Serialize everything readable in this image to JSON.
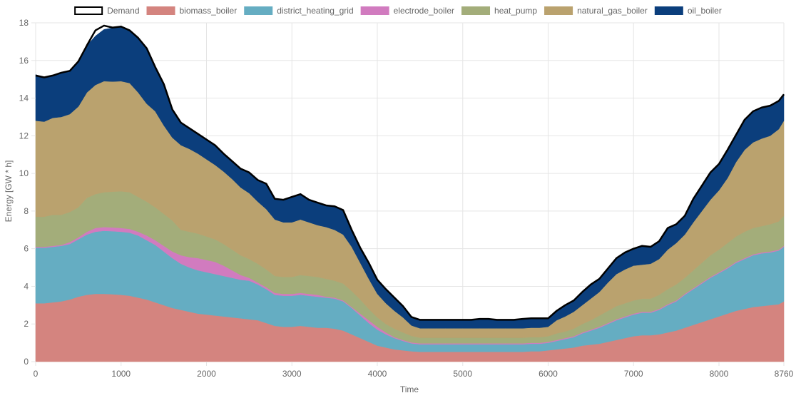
{
  "chart_data": {
    "type": "area",
    "stacked": true,
    "xlabel": "Time",
    "ylabel": "Energy [GW * h]",
    "xlim": [
      0,
      8760
    ],
    "ylim": [
      0,
      18
    ],
    "x_ticks": [
      "0",
      "1000",
      "2000",
      "3000",
      "4000",
      "5000",
      "6000",
      "7000",
      "8000",
      "8760"
    ],
    "y_ticks": [
      "0",
      "2",
      "4",
      "6",
      "8",
      "10",
      "12",
      "14",
      "16",
      "18"
    ],
    "grid": true,
    "legend_position": "top",
    "x": [
      0,
      100,
      200,
      300,
      400,
      500,
      600,
      700,
      800,
      900,
      1000,
      1100,
      1200,
      1300,
      1400,
      1500,
      1600,
      1700,
      1800,
      1900,
      2000,
      2100,
      2200,
      2300,
      2400,
      2500,
      2600,
      2700,
      2800,
      2900,
      3000,
      3100,
      3200,
      3300,
      3400,
      3500,
      3600,
      3700,
      3800,
      3900,
      4000,
      4100,
      4200,
      4300,
      4400,
      4500,
      4600,
      4700,
      4800,
      4900,
      5000,
      5100,
      5200,
      5300,
      5400,
      5500,
      5600,
      5700,
      5800,
      5900,
      6000,
      6100,
      6200,
      6300,
      6400,
      6500,
      6600,
      6700,
      6800,
      6900,
      7000,
      7100,
      7200,
      7300,
      7400,
      7500,
      7600,
      7700,
      7800,
      7900,
      8000,
      8100,
      8200,
      8300,
      8400,
      8500,
      8600,
      8700,
      8760
    ],
    "series": [
      {
        "name": "biomass_boiler",
        "color": "#d4847f",
        "values": [
          3.1,
          3.1,
          3.15,
          3.2,
          3.3,
          3.45,
          3.55,
          3.6,
          3.6,
          3.58,
          3.55,
          3.5,
          3.4,
          3.3,
          3.15,
          3.0,
          2.85,
          2.75,
          2.65,
          2.55,
          2.5,
          2.45,
          2.4,
          2.35,
          2.3,
          2.25,
          2.2,
          2.05,
          1.9,
          1.85,
          1.85,
          1.9,
          1.85,
          1.8,
          1.8,
          1.75,
          1.65,
          1.45,
          1.25,
          1.05,
          0.85,
          0.75,
          0.65,
          0.6,
          0.55,
          0.52,
          0.52,
          0.52,
          0.52,
          0.52,
          0.52,
          0.52,
          0.52,
          0.52,
          0.52,
          0.52,
          0.52,
          0.52,
          0.55,
          0.55,
          0.6,
          0.65,
          0.7,
          0.75,
          0.85,
          0.9,
          0.95,
          1.05,
          1.15,
          1.25,
          1.35,
          1.4,
          1.4,
          1.45,
          1.55,
          1.65,
          1.8,
          1.95,
          2.1,
          2.25,
          2.4,
          2.55,
          2.7,
          2.8,
          2.9,
          2.95,
          3.0,
          3.05,
          3.2
        ]
      },
      {
        "name": "district_heating_grid",
        "color": "#65adc2",
        "values": [
          2.95,
          2.95,
          2.95,
          2.95,
          2.95,
          3.05,
          3.2,
          3.3,
          3.35,
          3.35,
          3.35,
          3.35,
          3.3,
          3.15,
          3.05,
          2.85,
          2.65,
          2.45,
          2.35,
          2.3,
          2.25,
          2.2,
          2.15,
          2.1,
          2.05,
          2.05,
          1.9,
          1.8,
          1.65,
          1.65,
          1.65,
          1.65,
          1.65,
          1.65,
          1.6,
          1.6,
          1.55,
          1.4,
          1.2,
          1.0,
          0.85,
          0.7,
          0.6,
          0.5,
          0.42,
          0.4,
          0.4,
          0.4,
          0.4,
          0.4,
          0.4,
          0.4,
          0.4,
          0.4,
          0.4,
          0.4,
          0.4,
          0.4,
          0.4,
          0.4,
          0.4,
          0.45,
          0.5,
          0.55,
          0.65,
          0.75,
          0.85,
          0.95,
          1.05,
          1.1,
          1.15,
          1.2,
          1.2,
          1.3,
          1.45,
          1.55,
          1.75,
          1.9,
          2.05,
          2.2,
          2.3,
          2.4,
          2.55,
          2.65,
          2.75,
          2.8,
          2.8,
          2.85,
          2.9
        ]
      },
      {
        "name": "electrode_boiler",
        "color": "#d17bbf",
        "values": [
          0.05,
          0.05,
          0.05,
          0.05,
          0.1,
          0.1,
          0.15,
          0.2,
          0.2,
          0.2,
          0.2,
          0.2,
          0.2,
          0.25,
          0.25,
          0.3,
          0.35,
          0.45,
          0.55,
          0.65,
          0.65,
          0.65,
          0.55,
          0.4,
          0.25,
          0.15,
          0.1,
          0.1,
          0.1,
          0.1,
          0.1,
          0.1,
          0.1,
          0.1,
          0.05,
          0.05,
          0.05,
          0.05,
          0.1,
          0.15,
          0.15,
          0.1,
          0.05,
          0.05,
          0.05,
          0.05,
          0.05,
          0.05,
          0.05,
          0.05,
          0.05,
          0.05,
          0.05,
          0.05,
          0.05,
          0.05,
          0.05,
          0.05,
          0.05,
          0.05,
          0.05,
          0.05,
          0.05,
          0.05,
          0.05,
          0.05,
          0.05,
          0.05,
          0.05,
          0.05,
          0.05,
          0.05,
          0.05,
          0.05,
          0.05,
          0.05,
          0.05,
          0.05,
          0.05,
          0.05,
          0.05,
          0.05,
          0.05,
          0.05,
          0.05,
          0.05,
          0.05,
          0.05,
          0.05
        ]
      },
      {
        "name": "heat_pump",
        "color": "#a3ad7a",
        "values": [
          1.6,
          1.6,
          1.65,
          1.6,
          1.6,
          1.6,
          1.8,
          1.8,
          1.85,
          1.9,
          1.95,
          1.95,
          1.85,
          1.8,
          1.75,
          1.7,
          1.65,
          1.35,
          1.35,
          1.3,
          1.25,
          1.2,
          1.15,
          1.1,
          1.05,
          1.0,
          1.0,
          0.95,
          0.9,
          0.9,
          0.9,
          0.95,
          0.95,
          0.95,
          0.95,
          0.9,
          0.9,
          0.85,
          0.75,
          0.6,
          0.5,
          0.45,
          0.45,
          0.4,
          0.35,
          0.3,
          0.3,
          0.3,
          0.3,
          0.3,
          0.3,
          0.3,
          0.3,
          0.3,
          0.3,
          0.3,
          0.3,
          0.3,
          0.3,
          0.3,
          0.3,
          0.35,
          0.35,
          0.4,
          0.45,
          0.5,
          0.6,
          0.65,
          0.7,
          0.7,
          0.7,
          0.7,
          0.7,
          0.75,
          0.8,
          0.85,
          0.85,
          0.95,
          1.05,
          1.15,
          1.2,
          1.3,
          1.35,
          1.4,
          1.4,
          1.4,
          1.45,
          1.5,
          1.6
        ]
      },
      {
        "name": "natural_gas_boiler",
        "color": "#baa26e",
        "values": [
          5.1,
          5.05,
          5.15,
          5.2,
          5.2,
          5.35,
          5.6,
          5.8,
          5.9,
          5.85,
          5.85,
          5.8,
          5.55,
          5.2,
          5.1,
          4.7,
          4.4,
          4.5,
          4.4,
          4.25,
          4.1,
          3.95,
          3.85,
          3.75,
          3.6,
          3.5,
          3.3,
          3.2,
          3.0,
          2.9,
          2.9,
          2.95,
          2.85,
          2.75,
          2.75,
          2.7,
          2.6,
          2.35,
          1.95,
          1.6,
          1.25,
          1.1,
          0.95,
          0.8,
          0.55,
          0.5,
          0.5,
          0.5,
          0.5,
          0.5,
          0.5,
          0.5,
          0.5,
          0.5,
          0.5,
          0.5,
          0.5,
          0.5,
          0.5,
          0.5,
          0.5,
          0.7,
          0.8,
          0.9,
          1.0,
          1.15,
          1.25,
          1.5,
          1.7,
          1.8,
          1.85,
          1.8,
          1.85,
          1.9,
          2.1,
          2.2,
          2.3,
          2.55,
          2.75,
          2.95,
          3.15,
          3.45,
          3.95,
          4.35,
          4.55,
          4.65,
          4.7,
          4.9,
          5.05
        ]
      },
      {
        "name": "oil_boiler",
        "color": "#0b3e7c",
        "values": [
          2.45,
          2.35,
          2.25,
          2.35,
          2.3,
          2.4,
          2.5,
          2.6,
          2.75,
          2.85,
          2.9,
          2.8,
          2.9,
          2.95,
          2.35,
          2.1,
          1.45,
          1.2,
          1.1,
          1.05,
          1.05,
          1.05,
          0.95,
          0.95,
          1.0,
          1.1,
          1.15,
          1.3,
          1.1,
          1.2,
          1.35,
          1.35,
          1.2,
          1.2,
          1.15,
          1.25,
          1.3,
          0.9,
          0.8,
          0.85,
          0.75,
          0.75,
          0.7,
          0.6,
          0.45,
          0.45,
          0.45,
          0.45,
          0.45,
          0.45,
          0.45,
          0.45,
          0.5,
          0.5,
          0.45,
          0.45,
          0.45,
          0.5,
          0.5,
          0.5,
          0.45,
          0.5,
          0.55,
          0.6,
          0.7,
          0.75,
          0.7,
          0.75,
          0.8,
          0.85,
          0.85,
          1.0,
          0.9,
          0.95,
          1.15,
          1.0,
          1.0,
          1.25,
          1.35,
          1.45,
          1.4,
          1.45,
          1.45,
          1.6,
          1.6,
          1.6,
          1.55,
          1.45,
          1.4
        ]
      }
    ],
    "demand": {
      "name": "Demand",
      "color": "#000000",
      "values": [
        15.2,
        15.1,
        15.2,
        15.35,
        15.45,
        15.95,
        16.8,
        17.6,
        17.85,
        17.75,
        17.8,
        17.6,
        17.2,
        16.65,
        15.65,
        14.75,
        13.4,
        12.7,
        12.4,
        12.1,
        11.8,
        11.5,
        11.05,
        10.65,
        10.25,
        10.05,
        9.65,
        9.45,
        8.65,
        8.6,
        8.75,
        8.9,
        8.6,
        8.45,
        8.3,
        8.25,
        8.05,
        7.0,
        6.05,
        5.25,
        4.35,
        3.85,
        3.4,
        2.95,
        2.37,
        2.22,
        2.22,
        2.22,
        2.22,
        2.22,
        2.22,
        2.22,
        2.27,
        2.27,
        2.22,
        2.22,
        2.22,
        2.27,
        2.3,
        2.3,
        2.3,
        2.7,
        3.0,
        3.25,
        3.7,
        4.1,
        4.4,
        4.95,
        5.5,
        5.8,
        6.0,
        6.15,
        6.1,
        6.4,
        7.1,
        7.3,
        7.75,
        8.65,
        9.35,
        10.05,
        10.5,
        11.25,
        12.05,
        12.85,
        13.3,
        13.5,
        13.6,
        13.85,
        14.2
      ]
    }
  }
}
